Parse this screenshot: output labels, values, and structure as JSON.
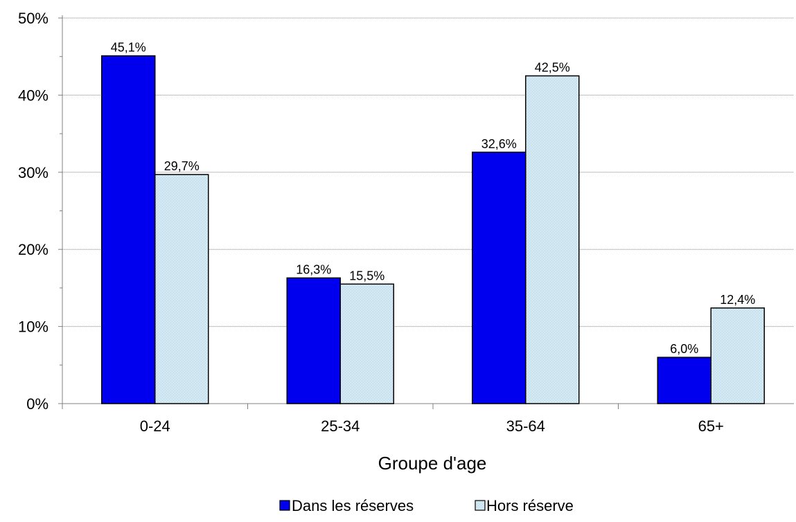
{
  "chart_data": {
    "type": "bar",
    "title": "",
    "xlabel": "Groupe d'age",
    "ylabel": "",
    "categories": [
      "0-24",
      "25-34",
      "35-64",
      "65+"
    ],
    "series": [
      {
        "name": "Dans les réserves",
        "values": [
          45.1,
          16.3,
          32.6,
          6.0
        ],
        "labels": [
          "45,1%",
          "16,3%",
          "32,6%",
          "6,0%"
        ],
        "color": "#0000EE"
      },
      {
        "name": "Hors réserve",
        "values": [
          29.7,
          15.5,
          42.5,
          12.4
        ],
        "labels": [
          "29,7%",
          "15,5%",
          "42,5%",
          "12,4%"
        ],
        "color": "#CCE6F0"
      }
    ],
    "ylim": [
      0,
      50
    ],
    "yticks": [
      0,
      10,
      20,
      30,
      40,
      50
    ],
    "ytick_labels": [
      "0%",
      "10%",
      "20%",
      "30%",
      "40%",
      "50%"
    ],
    "grid": true,
    "legend": "bottom"
  }
}
